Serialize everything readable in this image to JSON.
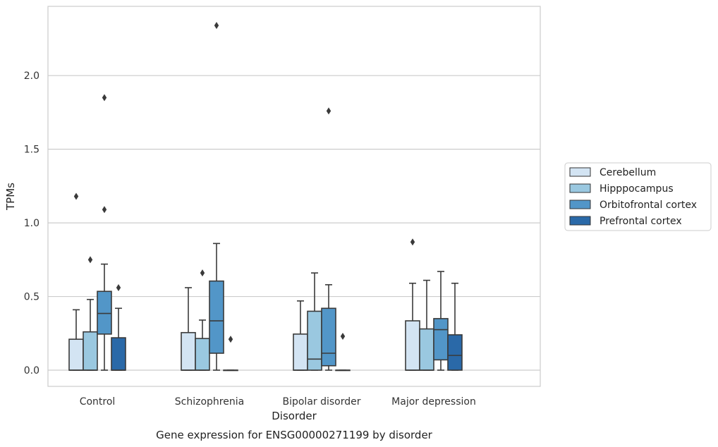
{
  "chart_data": {
    "type": "box",
    "xlabel": "Disorder",
    "ylabel": "TPMs",
    "caption": "Gene expression for ENSG00000271199 by disorder",
    "categories": [
      "Control",
      "Schizophrenia",
      "Bipolar disorder",
      "Major depression"
    ],
    "ylim": [
      -0.11,
      2.47
    ],
    "yticks": [
      0.0,
      0.5,
      1.0,
      1.5,
      2.0
    ],
    "ytick_labels": [
      "0.0",
      "0.5",
      "1.0",
      "1.5",
      "2.0"
    ],
    "grid": "horizontal",
    "legend_position": "right",
    "series": [
      {
        "name": "Cerebellum",
        "color": "#d3e4f3",
        "boxes": [
          {
            "min": 0.0,
            "q1": 0.0,
            "median": 0.0,
            "q3": 0.21,
            "max": 0.41,
            "outliers": [
              1.18
            ]
          },
          {
            "min": 0.0,
            "q1": 0.0,
            "median": 0.0,
            "q3": 0.255,
            "max": 0.56,
            "outliers": []
          },
          {
            "min": 0.0,
            "q1": 0.0,
            "median": 0.0,
            "q3": 0.245,
            "max": 0.47,
            "outliers": []
          },
          {
            "min": 0.0,
            "q1": 0.0,
            "median": 0.0,
            "q3": 0.335,
            "max": 0.59,
            "outliers": [
              0.87
            ]
          }
        ]
      },
      {
        "name": "Hipppocampus",
        "color": "#9ac8e0",
        "boxes": [
          {
            "min": 0.0,
            "q1": 0.0,
            "median": 0.0,
            "q3": 0.26,
            "max": 0.48,
            "outliers": [
              0.75
            ]
          },
          {
            "min": 0.0,
            "q1": 0.0,
            "median": 0.0,
            "q3": 0.215,
            "max": 0.34,
            "outliers": [
              0.66
            ]
          },
          {
            "min": 0.0,
            "q1": 0.0,
            "median": 0.075,
            "q3": 0.4,
            "max": 0.66,
            "outliers": []
          },
          {
            "min": 0.0,
            "q1": 0.0,
            "median": 0.0,
            "q3": 0.28,
            "max": 0.61,
            "outliers": []
          }
        ]
      },
      {
        "name": "Orbitofrontal cortex",
        "color": "#5296c8",
        "boxes": [
          {
            "min": 0.0,
            "q1": 0.245,
            "median": 0.385,
            "q3": 0.535,
            "max": 0.72,
            "outliers": [
              1.09,
              1.85
            ]
          },
          {
            "min": 0.0,
            "q1": 0.115,
            "median": 0.335,
            "q3": 0.605,
            "max": 0.86,
            "outliers": [
              2.34
            ]
          },
          {
            "min": 0.0,
            "q1": 0.03,
            "median": 0.115,
            "q3": 0.42,
            "max": 0.58,
            "outliers": [
              1.76
            ]
          },
          {
            "min": 0.0,
            "q1": 0.07,
            "median": 0.275,
            "q3": 0.35,
            "max": 0.67,
            "outliers": []
          }
        ]
      },
      {
        "name": "Prefrontal cortex",
        "color": "#2a69a8",
        "boxes": [
          {
            "min": 0.0,
            "q1": 0.0,
            "median": 0.0,
            "q3": 0.22,
            "max": 0.42,
            "outliers": [
              0.56
            ]
          },
          {
            "min": 0.0,
            "q1": 0.0,
            "median": 0.0,
            "q3": 0.0,
            "max": 0.0,
            "outliers": [
              0.21
            ]
          },
          {
            "min": 0.0,
            "q1": 0.0,
            "median": 0.0,
            "q3": 0.0,
            "max": 0.0,
            "outliers": [
              0.23
            ]
          },
          {
            "min": 0.0,
            "q1": 0.0,
            "median": 0.1,
            "q3": 0.24,
            "max": 0.59,
            "outliers": []
          }
        ]
      }
    ]
  }
}
